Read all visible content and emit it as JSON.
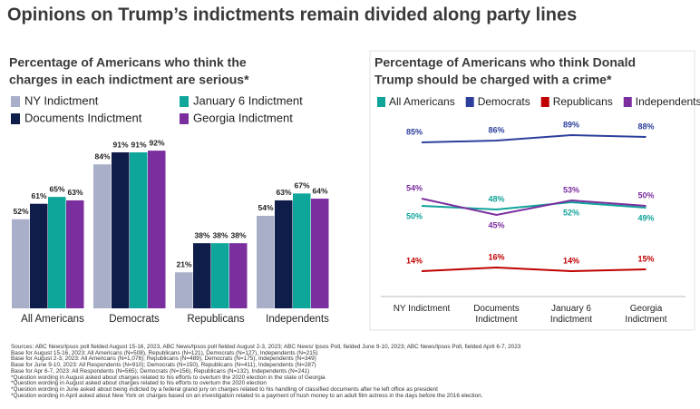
{
  "title": "Opinions on Trump’s indictments remain divided along party lines",
  "chart_data": [
    {
      "type": "bar",
      "title_lines": [
        "Percentage of Americans who think the",
        "charges in each indictment are serious*"
      ],
      "categories": [
        "All Americans",
        "Democrats",
        "Republicans",
        "Independents"
      ],
      "ylim": [
        0,
        100
      ],
      "series": [
        {
          "name": "NY Indictment",
          "color": "#a9aec9",
          "values": [
            52,
            84,
            21,
            54
          ],
          "value_labels": [
            "52%",
            "84%",
            "21%",
            "54%"
          ]
        },
        {
          "name": "Documents Indictment",
          "color": "#0f1d4a",
          "values": [
            61,
            91,
            38,
            63
          ],
          "value_labels": [
            "61%",
            "91%",
            "38%",
            "63%"
          ]
        },
        {
          "name": "January 6 Indictment",
          "color": "#0ea59b",
          "values": [
            65,
            91,
            38,
            67
          ],
          "value_labels": [
            "65%",
            "91%",
            "38%",
            "67%"
          ]
        },
        {
          "name": "Georgia Indictment",
          "color": "#7b2f9e",
          "values": [
            63,
            92,
            38,
            64
          ],
          "value_labels": [
            "63%",
            "92%",
            "38%",
            "64%"
          ]
        }
      ]
    },
    {
      "type": "line",
      "title_lines": [
        "Percentage of Americans who think Donald",
        "Trump should be charged with a crime*"
      ],
      "categories": [
        "NY Indictment",
        "Documents Indictment",
        "January 6 Indictment",
        "Georgia Indictment"
      ],
      "ylim": [
        0,
        100
      ],
      "series": [
        {
          "name": "All Americans",
          "color": "#10a39a",
          "values": [
            50,
            48,
            52,
            49
          ],
          "value_labels": [
            "50%",
            "48%",
            "52%",
            "49%"
          ]
        },
        {
          "name": "Democrats",
          "color": "#2d3f9c",
          "values": [
            85,
            86,
            89,
            88
          ],
          "value_labels": [
            "85%",
            "86%",
            "89%",
            "88%"
          ]
        },
        {
          "name": "Republicans",
          "color": "#c00000",
          "values": [
            14,
            16,
            14,
            15
          ],
          "value_labels": [
            "14%",
            "16%",
            "14%",
            "15%"
          ]
        },
        {
          "name": "Independents",
          "color": "#7b2f9e",
          "values": [
            54,
            45,
            53,
            50
          ],
          "value_labels": [
            "54%",
            "45%",
            "53%",
            "50%"
          ]
        }
      ]
    }
  ],
  "notes": [
    "Sources: ABC News/Ipsos poll fielded August 15-16, 2023, ABC News/Ipsos poll fielded August 2-3, 2023; ABC News/ Ipsos Poll, fielded June 9-10, 2023; ABC News/Ipsos Poll, fielded April 6-7, 2023",
    "Base for August 15-16, 2023: All Americans (N=508), Republicans (N=121), Democrats (N=127), Independents (N=215)",
    "Base for August 2-3, 2023: All Americans (N=1,076); Republicans (N=489), Democrats (N=175), Independents (N=349)",
    "Base for June 9-10, 2023: All Respondents (N=910); Democrats (N=150), Republicans (N=411), Independents (N=287)",
    "Base for Apr 6-7, 2023: All Respondents (N=565); Democrats (N=156), Republicans (N=132), Independents (N=241)",
    "*Question wording in August asked about charges related to his efforts to overturn the 2020 election in the state of Georgia",
    "*Question wording in August asked about charges related to his efforts to overturn the 2020 election",
    "*Question wording in June asked about being indicted by a federal grand jury on charges related to his handling of classified documents after he left office as president",
    "*Question wording in April asked about New York on charges based on an investigation related to a payment of hush money to an adult film actress in the days before the 2016 election."
  ]
}
